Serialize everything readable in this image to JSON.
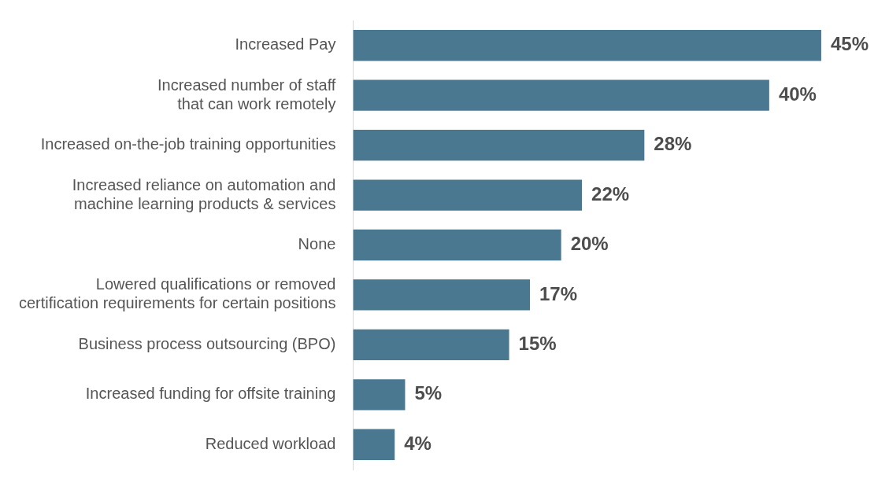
{
  "chart_data": {
    "type": "bar",
    "orientation": "horizontal",
    "tick_labels": "y",
    "categories": [
      "Increased Pay",
      "Increased number of staff that can work remotely",
      "Increased on-the-job training opportunities",
      "Increased reliance on automation and machine learning products & services",
      "None",
      "Lowered qualifications or removed certification requirements for certain positions",
      "Business process outsourcing (BPO)",
      "Increased funding for offsite training",
      "Reduced workload"
    ],
    "values": [
      45,
      40,
      28,
      22,
      20,
      17,
      15,
      5,
      4
    ],
    "value_labels": [
      "45%",
      "40%",
      "28%",
      "22%",
      "20%",
      "17%",
      "15%",
      "5%",
      "4%"
    ],
    "color": "#4a7891"
  }
}
